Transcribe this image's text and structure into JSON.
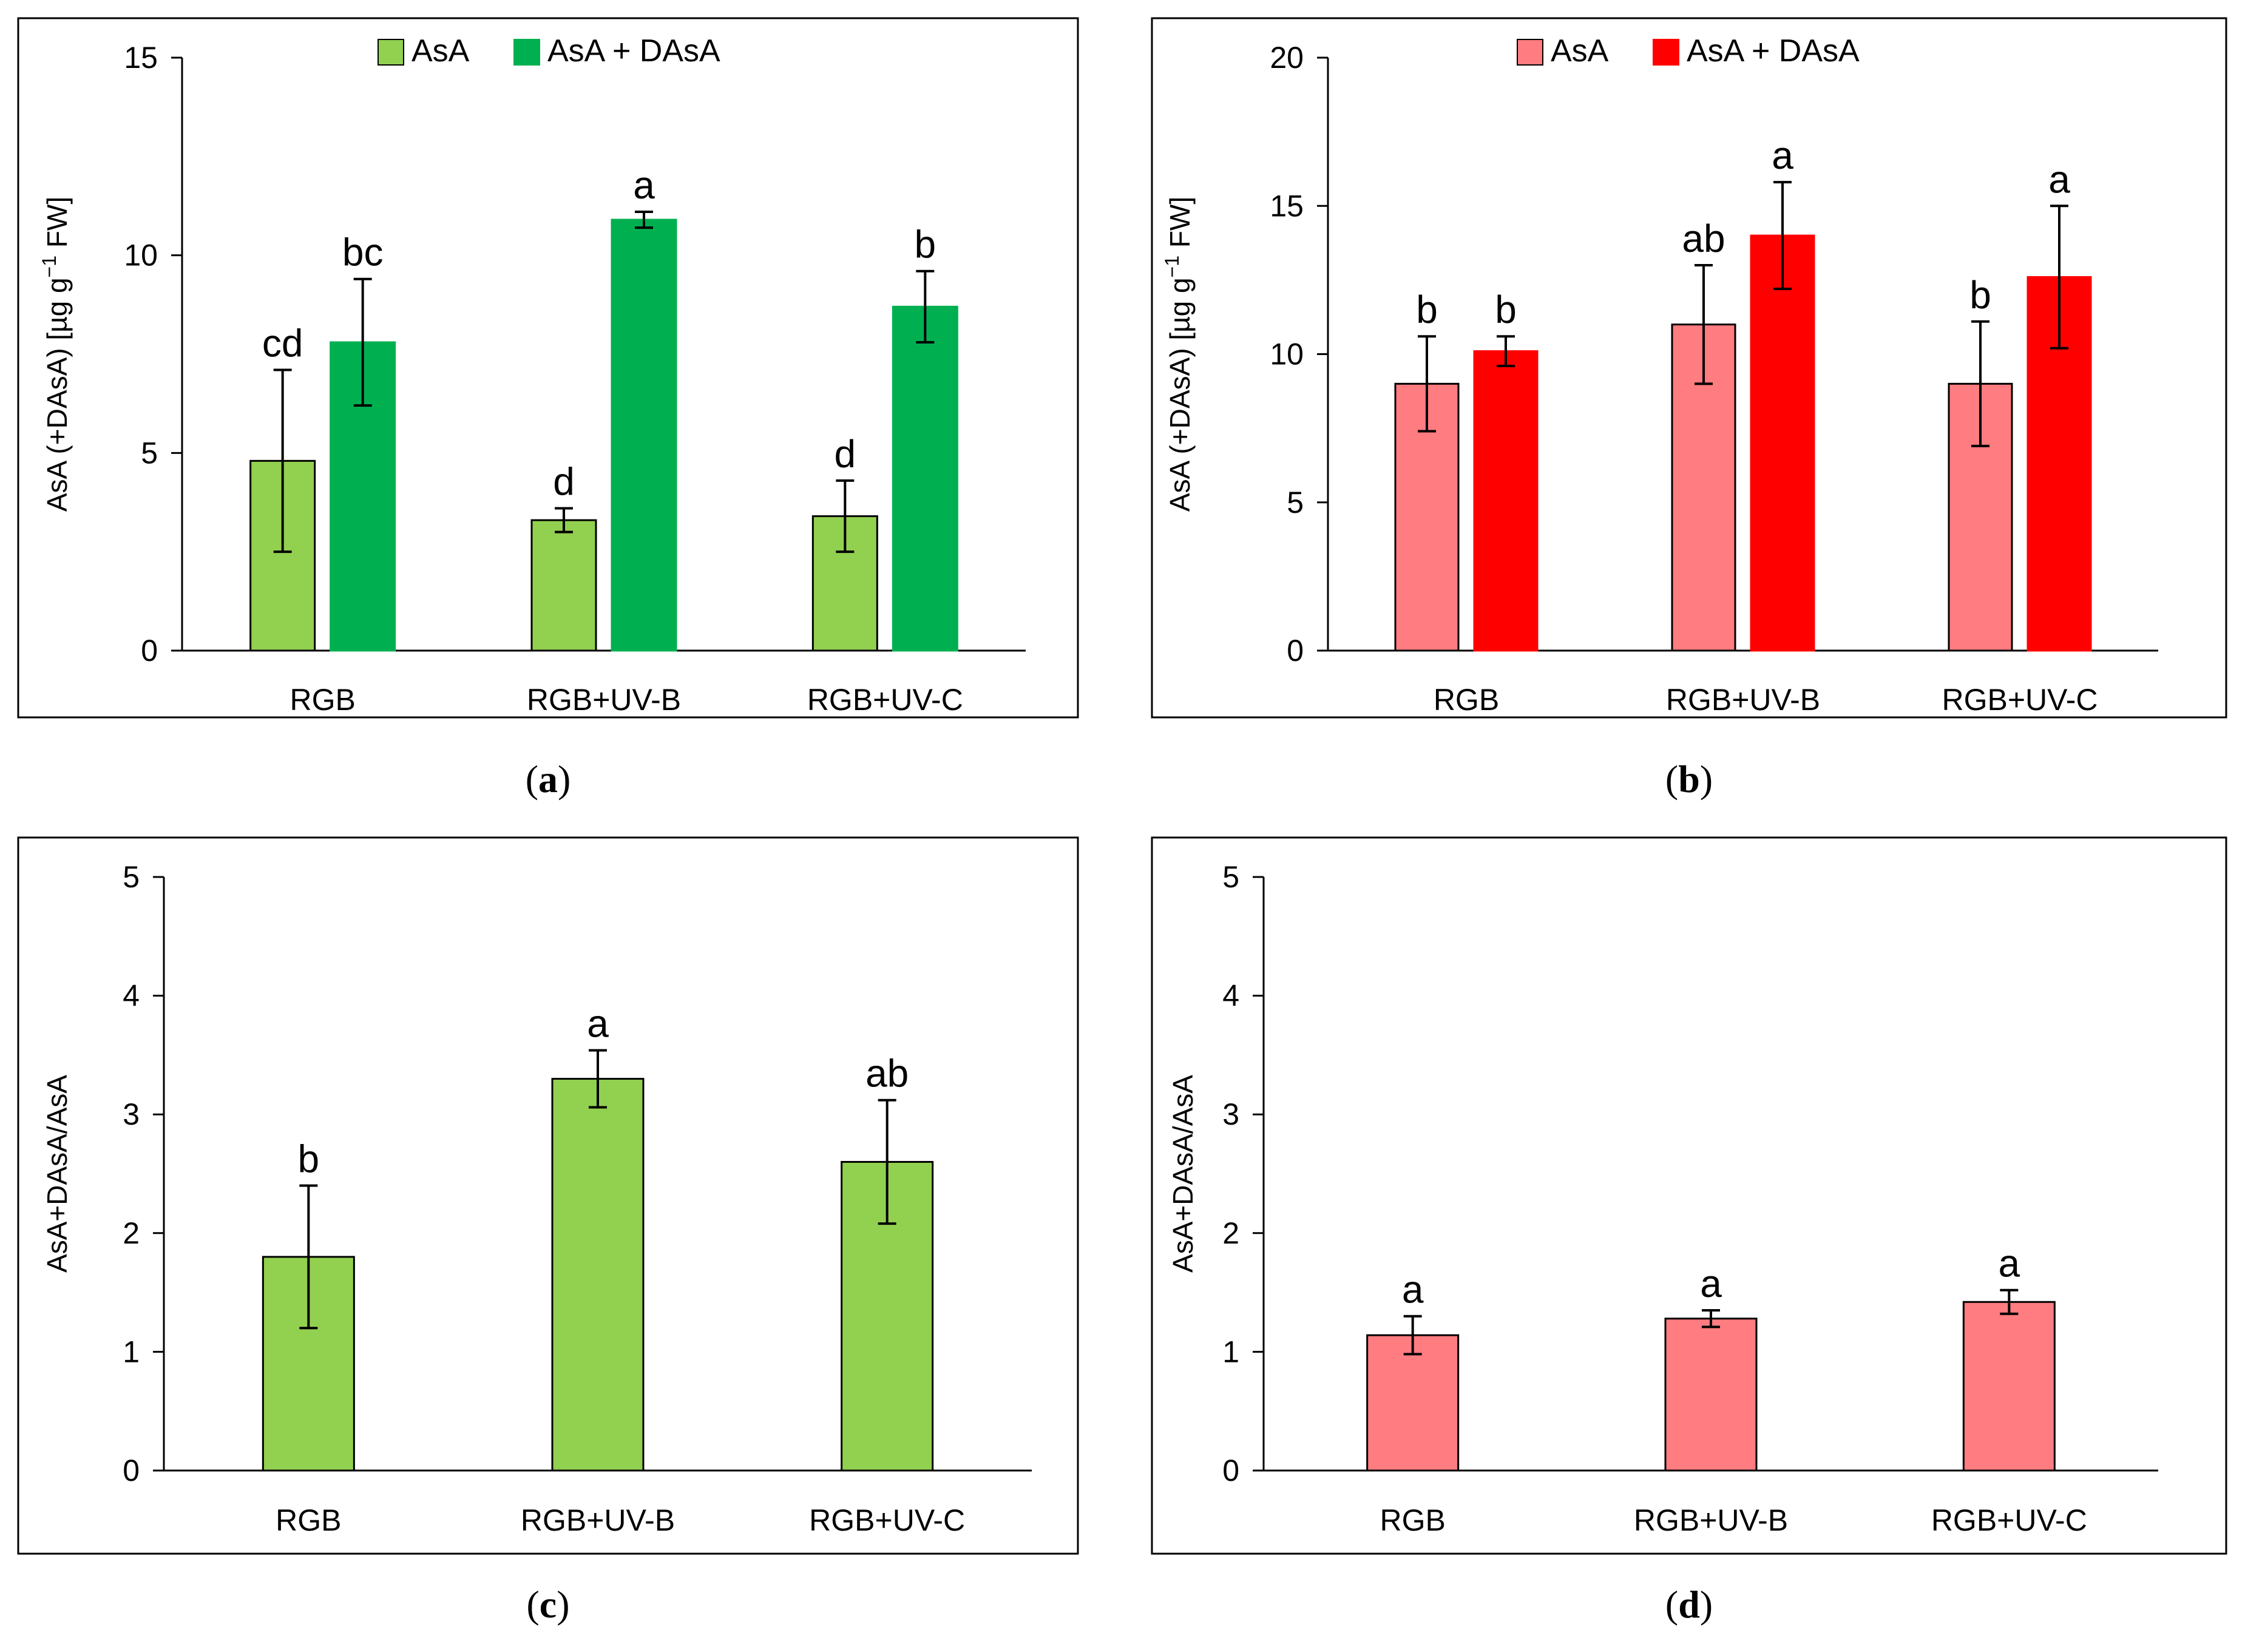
{
  "figure": {
    "panel_labels": [
      {
        "open": "(",
        "letter": "a",
        "close": ")"
      },
      {
        "open": "(",
        "letter": "b",
        "close": ")"
      },
      {
        "open": "(",
        "letter": "c",
        "close": ")"
      },
      {
        "open": "(",
        "letter": "d",
        "close": ")"
      }
    ]
  },
  "chart_data": [
    {
      "type": "bar",
      "categories": [
        "RGB",
        "RGB+UV-B",
        "RGB+UV-C"
      ],
      "ylabel": {
        "main": "AsA (+DAsA) [µg g",
        "sup": "−1",
        "tail": " FW]"
      },
      "ylim": [
        0,
        15
      ],
      "yticks": [
        0,
        5,
        10,
        15
      ],
      "legend": "top-center",
      "grid": false,
      "series": [
        {
          "name": "AsA",
          "color": "#92d050",
          "values": [
            4.8,
            3.3,
            3.4
          ],
          "errors": [
            2.3,
            0.3,
            0.9
          ],
          "letters": [
            "cd",
            "d",
            "d"
          ]
        },
        {
          "name": "AsA + DAsA",
          "color": "#00b050",
          "values": [
            7.8,
            10.9,
            8.7
          ],
          "errors": [
            1.6,
            0.2,
            0.9
          ],
          "letters": [
            "bc",
            "a",
            "b"
          ]
        }
      ]
    },
    {
      "type": "bar",
      "categories": [
        "RGB",
        "RGB+UV-B",
        "RGB+UV-C"
      ],
      "ylabel": {
        "main": "AsA (+DAsA) [µg g",
        "sup": "−1",
        "tail": " FW]"
      },
      "ylim": [
        0,
        20
      ],
      "yticks": [
        0,
        5,
        10,
        15,
        20
      ],
      "legend": "top-center",
      "grid": false,
      "series": [
        {
          "name": "AsA",
          "color": "#ff7c80",
          "values": [
            9.0,
            11.0,
            9.0
          ],
          "errors": [
            1.6,
            2.0,
            2.1
          ],
          "letters": [
            "b",
            "ab",
            "b"
          ]
        },
        {
          "name": "AsA + DAsA",
          "color": "#ff0000",
          "values": [
            10.1,
            14.0,
            12.6
          ],
          "errors": [
            0.5,
            1.8,
            2.4
          ],
          "letters": [
            "b",
            "a",
            "a"
          ]
        }
      ]
    },
    {
      "type": "bar",
      "categories": [
        "RGB",
        "RGB+UV-B",
        "RGB+UV-C"
      ],
      "ylabel": {
        "main": "AsA+DAsA/AsA",
        "sup": "",
        "tail": ""
      },
      "ylim": [
        0,
        5
      ],
      "yticks": [
        0,
        1,
        2,
        3,
        4,
        5
      ],
      "grid": false,
      "series": [
        {
          "name": "AsA+DAsA/AsA",
          "color": "#92d050",
          "values": [
            1.8,
            3.3,
            2.6
          ],
          "errors": [
            0.6,
            0.24,
            0.52
          ],
          "letters": [
            "b",
            "a",
            "ab"
          ]
        }
      ]
    },
    {
      "type": "bar",
      "categories": [
        "RGB",
        "RGB+UV-B",
        "RGB+UV-C"
      ],
      "ylabel": {
        "main": "AsA+DAsA/AsA",
        "sup": "",
        "tail": ""
      },
      "ylim": [
        0,
        5
      ],
      "yticks": [
        0,
        1,
        2,
        3,
        4,
        5
      ],
      "grid": false,
      "series": [
        {
          "name": "AsA+DAsA/AsA",
          "color": "#ff7c80",
          "values": [
            1.14,
            1.28,
            1.42
          ],
          "errors": [
            0.16,
            0.07,
            0.1
          ],
          "letters": [
            "a",
            "a",
            "a"
          ]
        }
      ]
    }
  ]
}
